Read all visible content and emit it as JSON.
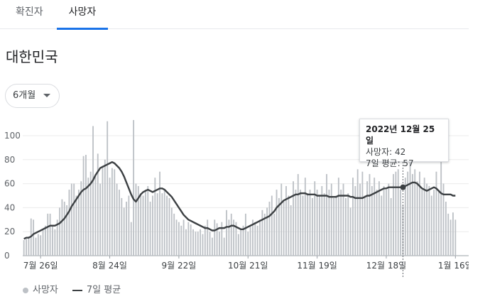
{
  "tabs": [
    {
      "label": "확진자",
      "active": false
    },
    {
      "label": "사망자",
      "active": true
    }
  ],
  "region": "대한민국",
  "range_selector": {
    "label": "6개월"
  },
  "colors": {
    "bars": "#bdc1c6",
    "avg_line": "#3c4043",
    "accent": "#1a73e8"
  },
  "legend": {
    "bars": "사망자",
    "line": "7일 평균"
  },
  "tooltip": {
    "date": "2022년 12월 25일",
    "deaths": "사망자: 42",
    "avg": "7일 평균: 57"
  },
  "chart_data": {
    "type": "bar",
    "ylim": [
      0,
      120
    ],
    "yticks": [
      0,
      20,
      40,
      60,
      80,
      100
    ],
    "xtick_labels": [
      {
        "label": "7월 26일",
        "day": 7
      },
      {
        "label": "8월 24일",
        "day": 36
      },
      {
        "label": "9월 22일",
        "day": 65
      },
      {
        "label": "10월 21일",
        "day": 94
      },
      {
        "label": "11월 19일",
        "day": 123
      },
      {
        "label": "12월 18일",
        "day": 152
      },
      {
        "label": "1월 16일",
        "day": 181
      }
    ],
    "highlight_day": 159,
    "series": [
      {
        "name": "사망자",
        "kind": "bar",
        "values": [
          13,
          14,
          16,
          31,
          30,
          15,
          18,
          17,
          22,
          25,
          35,
          35,
          25,
          22,
          30,
          40,
          47,
          45,
          42,
          55,
          60,
          60,
          50,
          55,
          62,
          83,
          84,
          65,
          70,
          108,
          68,
          85,
          60,
          75,
          80,
          112,
          65,
          73,
          72,
          60,
          55,
          48,
          40,
          45,
          50,
          28,
          113,
          60,
          58,
          52,
          50,
          55,
          58,
          45,
          50,
          65,
          52,
          70,
          52,
          55,
          50,
          48,
          40,
          35,
          30,
          28,
          25,
          30,
          22,
          28,
          26,
          22,
          20,
          20,
          22,
          18,
          25,
          30,
          20,
          15,
          30,
          27,
          20,
          28,
          15,
          38,
          30,
          35,
          30,
          28,
          18,
          22,
          25,
          35,
          20,
          24,
          30,
          28,
          25,
          30,
          38,
          35,
          40,
          45,
          50,
          35,
          55,
          48,
          60,
          45,
          58,
          50,
          42,
          62,
          55,
          68,
          55,
          50,
          65,
          52,
          55,
          48,
          62,
          55,
          50,
          58,
          52,
          68,
          55,
          60,
          48,
          50,
          65,
          55,
          60,
          48,
          52,
          40,
          65,
          58,
          72,
          60,
          70,
          50,
          62,
          68,
          58,
          65,
          55,
          62,
          50,
          58,
          55,
          60,
          48,
          68,
          70,
          72,
          55,
          42,
          65,
          70,
          78,
          68,
          72,
          62,
          70,
          55,
          65,
          60,
          58,
          50,
          55,
          70,
          55,
          78,
          60,
          45,
          35,
          30,
          36,
          30
        ]
      },
      {
        "name": "7일 평균",
        "kind": "line",
        "values": [
          14,
          15,
          15,
          16,
          18,
          19,
          20,
          21,
          22,
          23,
          24,
          25,
          25,
          25,
          26,
          27,
          29,
          31,
          34,
          37,
          41,
          44,
          47,
          50,
          53,
          55,
          56,
          58,
          60,
          63,
          67,
          70,
          73,
          74,
          75,
          76,
          77,
          78,
          77,
          75,
          73,
          70,
          66,
          61,
          56,
          51,
          47,
          45,
          48,
          51,
          53,
          54,
          55,
          54,
          53,
          54,
          55,
          56,
          56,
          55,
          53,
          51,
          49,
          46,
          43,
          40,
          37,
          34,
          32,
          30,
          29,
          28,
          27,
          26,
          25,
          24,
          23,
          23,
          22,
          21,
          21,
          22,
          23,
          23,
          23,
          24,
          24,
          25,
          25,
          24,
          23,
          22,
          22,
          23,
          24,
          25,
          26,
          27,
          28,
          29,
          30,
          31,
          32,
          33,
          35,
          37,
          40,
          42,
          44,
          46,
          47,
          48,
          49,
          50,
          51,
          51,
          52,
          52,
          52,
          51,
          51,
          51,
          51,
          50,
          50,
          50,
          50,
          50,
          49,
          49,
          49,
          49,
          50,
          50,
          50,
          50,
          50,
          49,
          49,
          48,
          48,
          48,
          48,
          49,
          50,
          50,
          51,
          52,
          53,
          54,
          55,
          56,
          56,
          57,
          57,
          57,
          57,
          57,
          57,
          57,
          58,
          59,
          60,
          61,
          61,
          60,
          58,
          56,
          55,
          54,
          55,
          56,
          57,
          56,
          54,
          52,
          51,
          51,
          51,
          51,
          50,
          50
        ]
      }
    ]
  }
}
